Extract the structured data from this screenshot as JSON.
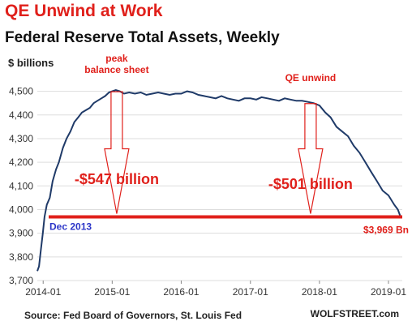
{
  "title": "QE Unwind at Work",
  "subtitle": "Federal Reserve Total Assets, Weekly",
  "ylabel": "$ billions",
  "source": "Source: Fed Board of Governors, St. Louis Fed",
  "brand": "WOLFSTREET.com",
  "colors": {
    "title": "#e0201b",
    "line": "#1f3a68",
    "annotation": "#e0201b",
    "baseline": "#e0201b",
    "start_label": "#2b35c8"
  },
  "chart_data": {
    "type": "line",
    "x_ticks": [
      "2014-01",
      "2015-01",
      "2016-01",
      "2017-01",
      "2018-01",
      "2019-01"
    ],
    "y_ticks": [
      "3,700",
      "3,800",
      "3,900",
      "4,000",
      "4,100",
      "4,200",
      "4,300",
      "4,400",
      "4,500"
    ],
    "ylim": [
      3700,
      4550
    ],
    "xlim": [
      "2013-12-01",
      "2019-03-15"
    ],
    "grid": "horizontal",
    "series": [
      {
        "points": [
          [
            "2013-12-01",
            3740
          ],
          [
            "2013-12-10",
            3760
          ],
          [
            "2013-12-20",
            3830
          ],
          [
            "2013-12-30",
            3900
          ],
          [
            "2014-01-08",
            3969
          ],
          [
            "2014-01-20",
            4020
          ],
          [
            "2014-02-05",
            4050
          ],
          [
            "2014-02-20",
            4120
          ],
          [
            "2014-03-10",
            4170
          ],
          [
            "2014-03-25",
            4200
          ],
          [
            "2014-04-15",
            4260
          ],
          [
            "2014-05-05",
            4300
          ],
          [
            "2014-05-25",
            4330
          ],
          [
            "2014-06-15",
            4370
          ],
          [
            "2014-07-05",
            4390
          ],
          [
            "2014-07-25",
            4410
          ],
          [
            "2014-08-15",
            4420
          ],
          [
            "2014-09-05",
            4430
          ],
          [
            "2014-09-25",
            4450
          ],
          [
            "2014-10-15",
            4460
          ],
          [
            "2014-11-05",
            4470
          ],
          [
            "2014-11-25",
            4480
          ],
          [
            "2014-12-15",
            4495
          ],
          [
            "2015-01-01",
            4500
          ],
          [
            "2015-01-20",
            4505
          ],
          [
            "2015-02-10",
            4500
          ],
          [
            "2015-03-05",
            4490
          ],
          [
            "2015-04-01",
            4495
          ],
          [
            "2015-05-01",
            4490
          ],
          [
            "2015-06-01",
            4495
          ],
          [
            "2015-07-01",
            4485
          ],
          [
            "2015-08-01",
            4490
          ],
          [
            "2015-09-01",
            4495
          ],
          [
            "2015-10-01",
            4490
          ],
          [
            "2015-11-01",
            4485
          ],
          [
            "2015-12-01",
            4490
          ],
          [
            "2016-01-01",
            4490
          ],
          [
            "2016-02-01",
            4500
          ],
          [
            "2016-03-01",
            4495
          ],
          [
            "2016-04-01",
            4485
          ],
          [
            "2016-05-01",
            4480
          ],
          [
            "2016-06-01",
            4475
          ],
          [
            "2016-07-01",
            4470
          ],
          [
            "2016-08-01",
            4480
          ],
          [
            "2016-09-01",
            4470
          ],
          [
            "2016-10-01",
            4465
          ],
          [
            "2016-11-01",
            4460
          ],
          [
            "2016-12-01",
            4470
          ],
          [
            "2017-01-01",
            4470
          ],
          [
            "2017-02-01",
            4465
          ],
          [
            "2017-03-01",
            4475
          ],
          [
            "2017-04-01",
            4470
          ],
          [
            "2017-05-01",
            4465
          ],
          [
            "2017-06-01",
            4460
          ],
          [
            "2017-07-01",
            4470
          ],
          [
            "2017-08-01",
            4465
          ],
          [
            "2017-09-01",
            4460
          ],
          [
            "2017-10-01",
            4460
          ],
          [
            "2017-11-01",
            4455
          ],
          [
            "2017-12-01",
            4450
          ],
          [
            "2018-01-01",
            4440
          ],
          [
            "2018-02-01",
            4410
          ],
          [
            "2018-03-01",
            4390
          ],
          [
            "2018-04-01",
            4350
          ],
          [
            "2018-05-01",
            4330
          ],
          [
            "2018-06-01",
            4310
          ],
          [
            "2018-07-01",
            4270
          ],
          [
            "2018-08-01",
            4240
          ],
          [
            "2018-09-01",
            4200
          ],
          [
            "2018-10-01",
            4160
          ],
          [
            "2018-11-01",
            4120
          ],
          [
            "2018-12-01",
            4080
          ],
          [
            "2019-01-01",
            4060
          ],
          [
            "2019-02-01",
            4020
          ],
          [
            "2019-02-20",
            4000
          ],
          [
            "2019-03-06",
            3969
          ]
        ]
      }
    ],
    "baseline_value": 3969,
    "annotations": {
      "peak": [
        "peak",
        "balance sheet"
      ],
      "qe_unwind": "QE unwind",
      "drop_1": "-$547 billion",
      "drop_2": "-$501 billion",
      "start": "Dec 2013",
      "end": "$3,969 Bn"
    }
  }
}
